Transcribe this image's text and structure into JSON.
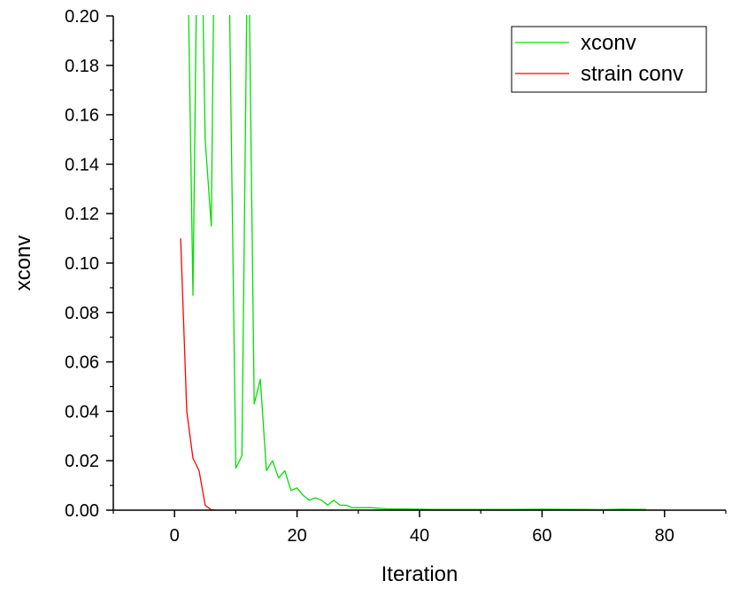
{
  "chart_data": {
    "type": "line",
    "xlabel": "Iteration",
    "ylabel": "xconv",
    "xlim": [
      -10,
      90
    ],
    "ylim": [
      0,
      0.2
    ],
    "x_ticks": [
      0,
      20,
      40,
      60,
      80
    ],
    "x_tick_labels": [
      "0",
      "20",
      "40",
      "60",
      "80"
    ],
    "y_ticks": [
      0.0,
      0.02,
      0.04,
      0.06,
      0.08,
      0.1,
      0.12,
      0.14,
      0.16,
      0.18,
      0.2
    ],
    "y_tick_labels": [
      "0.00",
      "0.02",
      "0.04",
      "0.06",
      "0.08",
      "0.10",
      "0.12",
      "0.14",
      "0.16",
      "0.18",
      "0.20"
    ],
    "grid": false,
    "legend_position": "top-right",
    "series": [
      {
        "name": "xconv",
        "color": "#00e000",
        "x": [
          2,
          3,
          4,
          5,
          6,
          7,
          8,
          9,
          10,
          11,
          12,
          13,
          14,
          15,
          16,
          17,
          18,
          19,
          20,
          21,
          22,
          23,
          24,
          25,
          26,
          27,
          28,
          29,
          30,
          32,
          35,
          38,
          42,
          55,
          60,
          67,
          70,
          73,
          77
        ],
        "y": [
          0.25,
          0.087,
          0.3,
          0.15,
          0.115,
          0.35,
          0.3,
          0.2,
          0.017,
          0.022,
          0.25,
          0.043,
          0.053,
          0.016,
          0.02,
          0.013,
          0.016,
          0.008,
          0.009,
          0.006,
          0.004,
          0.005,
          0.004,
          0.002,
          0.004,
          0.002,
          0.002,
          0.001,
          0.001,
          0.001,
          0.0005,
          0.0005,
          0.0003,
          0.0003,
          0.0004,
          0.0003,
          0.0002,
          0.0004,
          0.0003
        ]
      },
      {
        "name": "strain conv",
        "color": "#ff0000",
        "x": [
          1,
          2,
          3,
          4,
          5,
          6,
          7,
          10,
          20,
          40,
          60,
          80
        ],
        "y": [
          0.11,
          0.04,
          0.021,
          0.016,
          0.002,
          0.0001,
          0.0,
          0.0,
          0.0,
          0.0,
          0.0,
          0.0
        ]
      }
    ]
  }
}
